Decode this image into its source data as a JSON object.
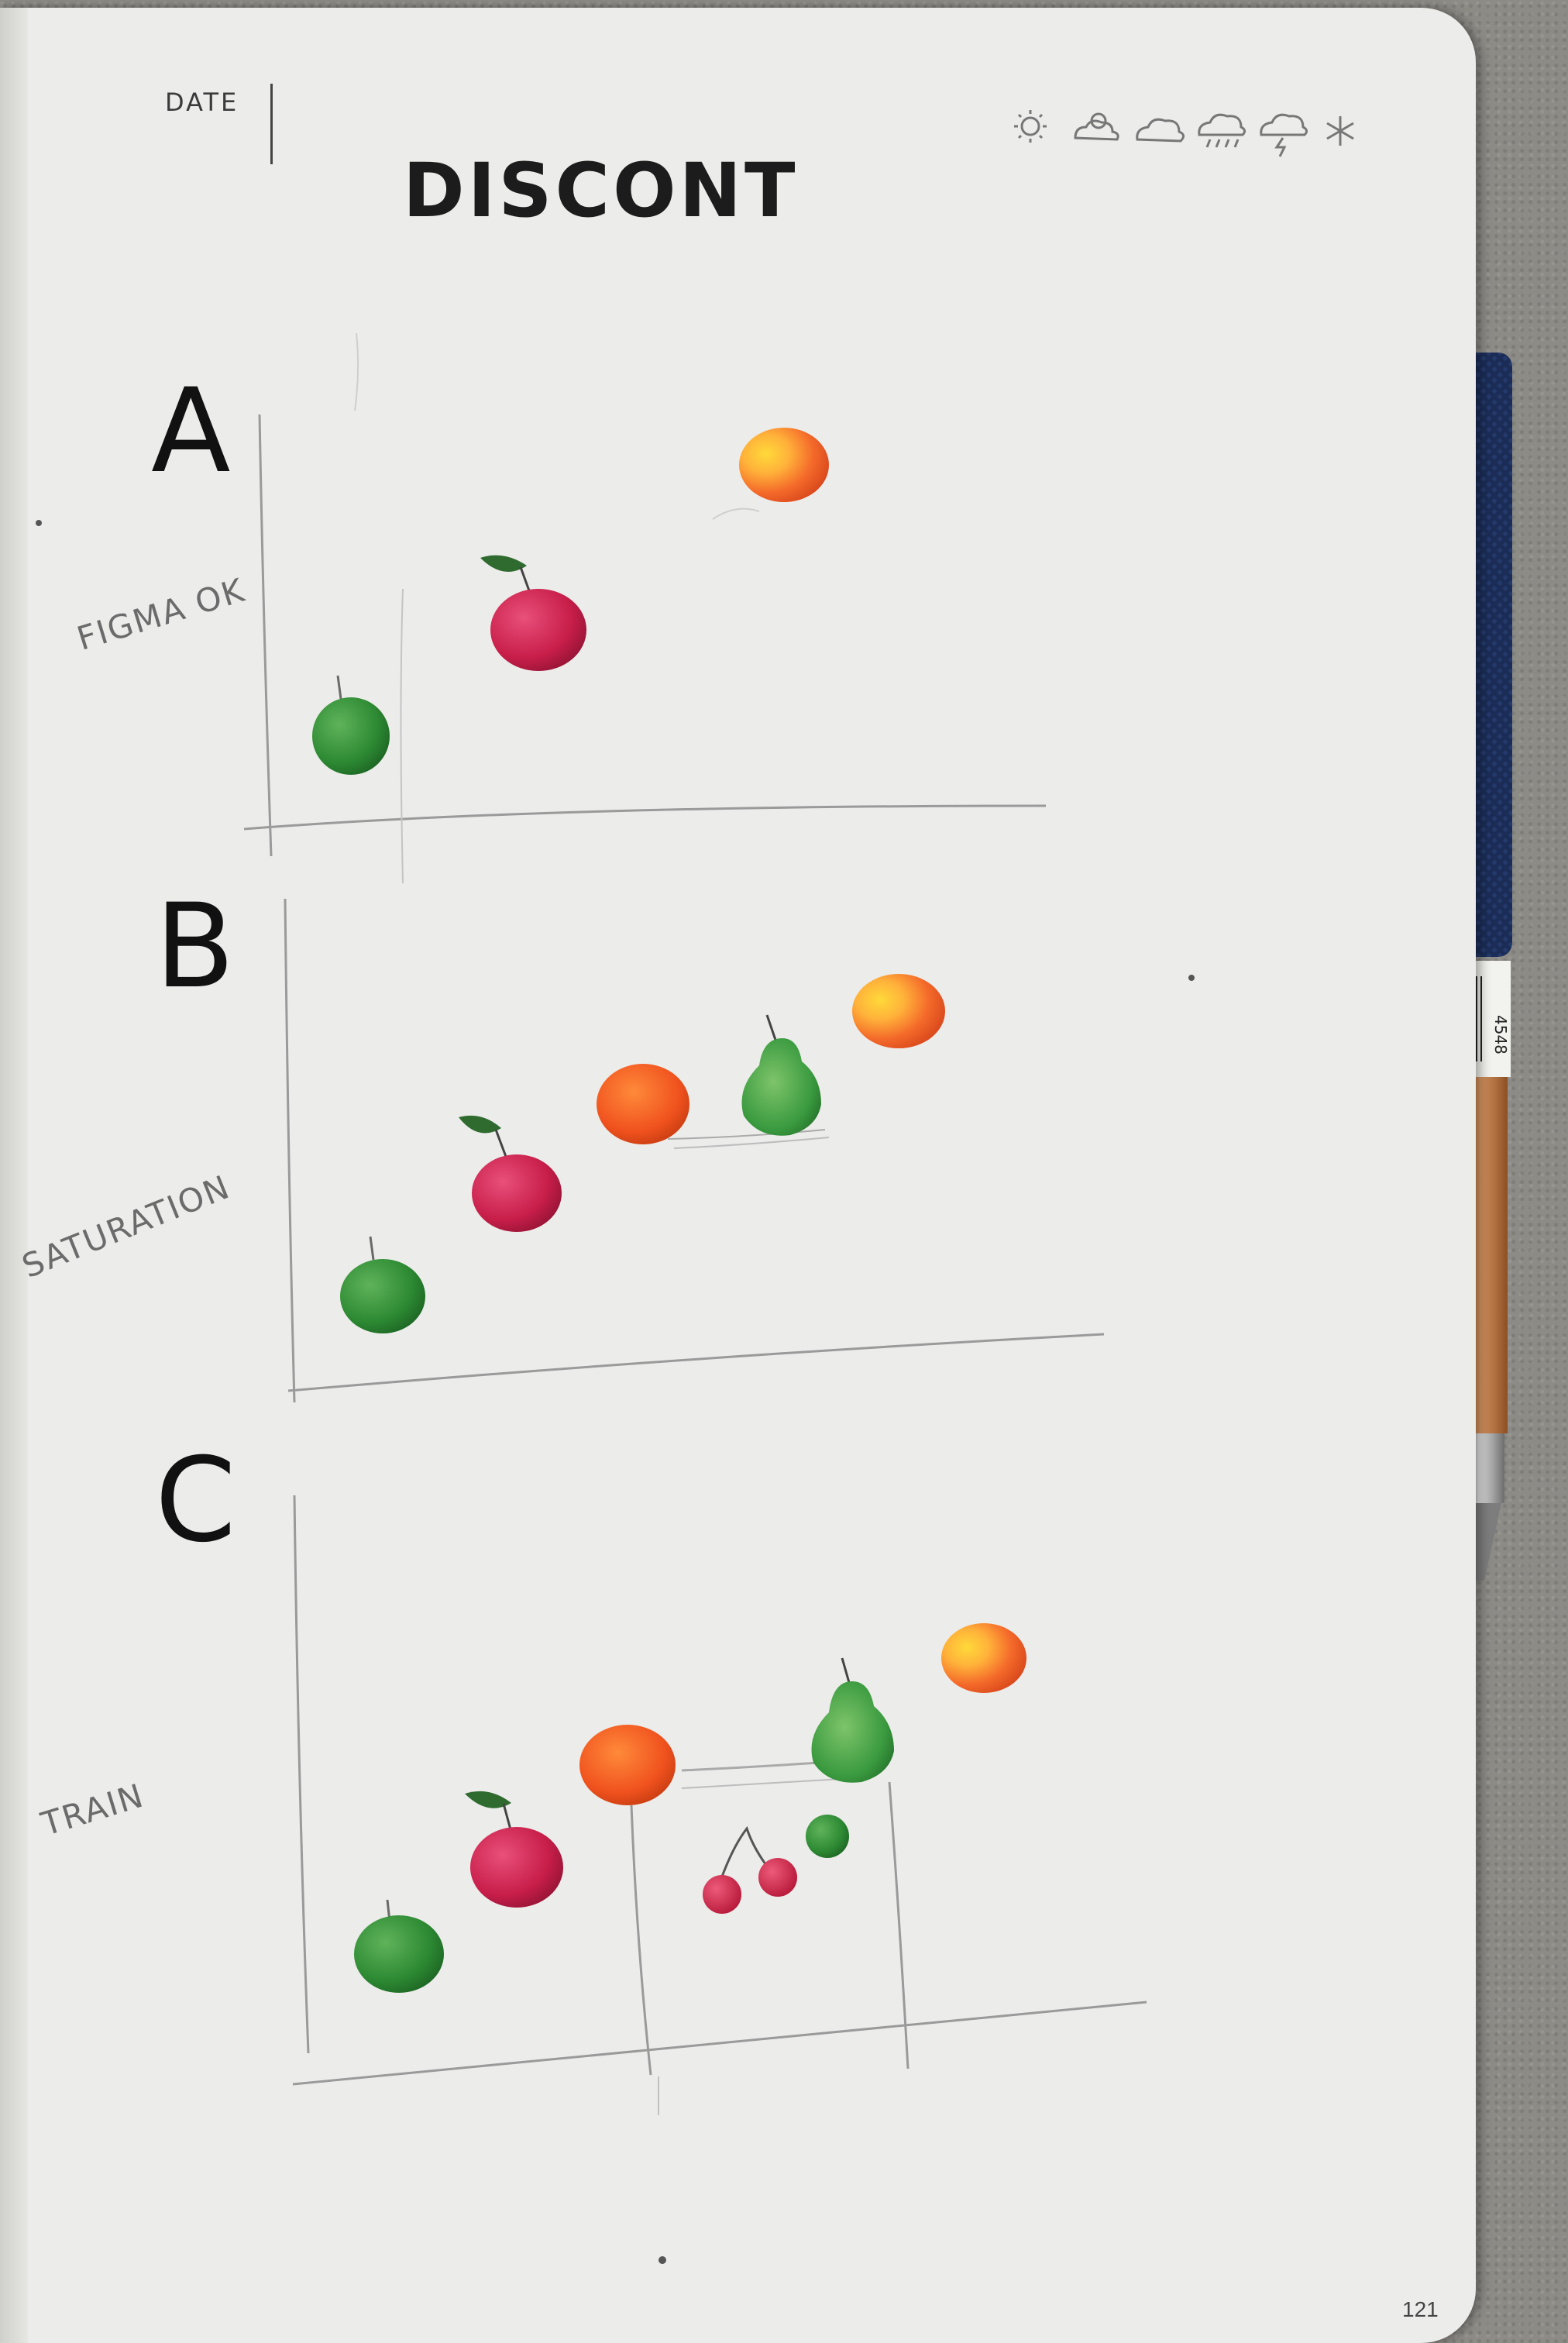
{
  "header": {
    "date_label": "DATE",
    "title": "DISCONT",
    "weather_icons": [
      "sun-icon",
      "sun-cloud-icon",
      "cloud-icon",
      "rain-cloud-icon",
      "storm-cloud-icon",
      "snowflake-icon"
    ]
  },
  "sections": [
    {
      "letter": "A",
      "axis_label": "FIGMA OK"
    },
    {
      "letter": "B",
      "axis_label": "SATURATION"
    },
    {
      "letter": "C",
      "axis_label": "TRAIN"
    }
  ],
  "footer": {
    "page_number": "121"
  },
  "pencil_code": "4548"
}
